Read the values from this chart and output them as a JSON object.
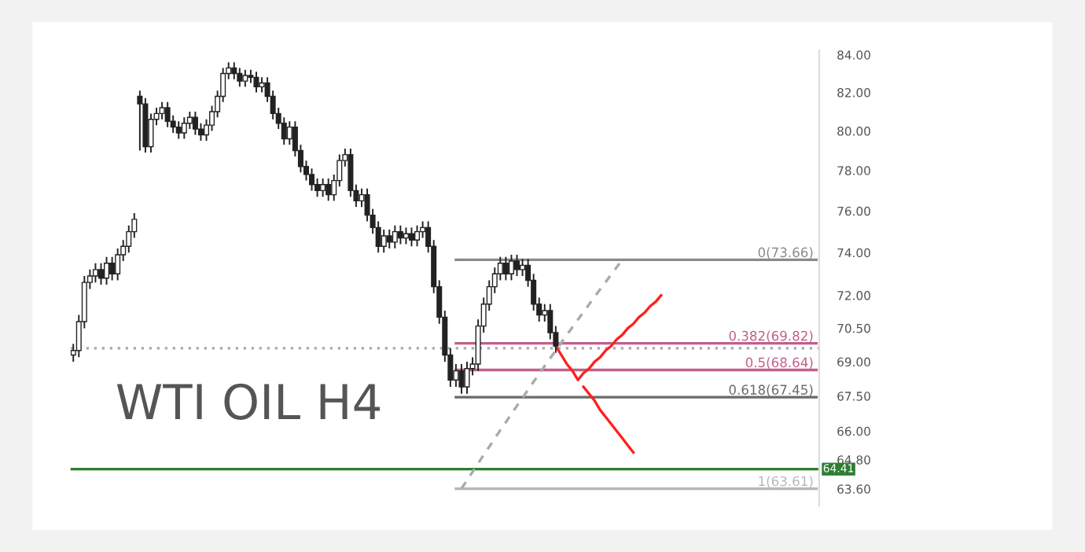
{
  "chart_data": {
    "type": "candlestick",
    "categories": [
      null,
      null,
      null,
      null,
      null,
      null,
      null,
      null,
      null,
      null,
      null,
      null,
      null,
      null,
      null,
      null,
      null,
      null,
      null,
      null,
      null,
      null,
      null,
      null,
      null,
      null,
      null,
      null,
      null,
      null,
      null,
      null,
      null,
      null,
      null,
      null,
      null,
      null,
      null,
      null,
      null,
      null,
      null,
      null,
      null,
      null,
      null,
      null,
      null,
      null,
      null,
      null,
      null,
      null,
      null,
      null,
      null,
      null,
      null,
      null,
      null,
      null,
      null,
      null,
      null,
      null,
      null,
      null,
      null,
      null,
      null,
      null,
      null,
      null,
      null,
      null,
      null,
      null,
      null,
      null,
      null,
      null,
      null,
      null,
      null,
      null,
      null,
      null,
      null,
      null,
      null,
      null,
      null,
      null,
      null,
      null,
      null,
      null,
      null,
      null,
      null,
      null,
      null,
      null,
      null,
      null,
      null,
      null,
      null,
      null,
      null,
      null,
      null,
      null,
      null,
      null,
      null,
      null,
      null,
      null,
      null,
      null,
      null,
      null,
      null,
      null,
      null,
      null,
      null,
      null,
      null,
      null,
      null,
      null,
      null
    ],
    "ohlc": [
      [
        69.3,
        69.8,
        69.0,
        69.5
      ],
      [
        69.5,
        71.1,
        69.2,
        70.8
      ],
      [
        70.8,
        72.9,
        70.5,
        72.6
      ],
      [
        72.6,
        73.2,
        72.3,
        72.9
      ],
      [
        72.9,
        73.5,
        72.6,
        73.2
      ],
      [
        73.2,
        73.5,
        72.5,
        72.8
      ],
      [
        72.8,
        73.8,
        72.5,
        73.5
      ],
      [
        73.5,
        73.8,
        72.7,
        73.0
      ],
      [
        73.0,
        74.2,
        72.7,
        73.9
      ],
      [
        73.9,
        74.6,
        73.6,
        74.3
      ],
      [
        74.3,
        75.3,
        74.0,
        75.0
      ],
      [
        75.0,
        75.9,
        74.7,
        75.6
      ],
      [
        81.8,
        82.1,
        79.0,
        81.4
      ],
      [
        81.4,
        81.7,
        78.9,
        79.2
      ],
      [
        79.2,
        80.9,
        78.9,
        80.6
      ],
      [
        80.6,
        81.2,
        80.3,
        80.9
      ],
      [
        80.9,
        81.5,
        80.6,
        81.2
      ],
      [
        81.2,
        81.5,
        80.2,
        80.5
      ],
      [
        80.5,
        80.8,
        79.9,
        80.2
      ],
      [
        80.2,
        80.5,
        79.6,
        79.9
      ],
      [
        79.9,
        80.7,
        79.6,
        80.4
      ],
      [
        80.4,
        81.0,
        80.1,
        80.7
      ],
      [
        80.7,
        81.0,
        79.8,
        80.1
      ],
      [
        80.1,
        80.4,
        79.5,
        79.8
      ],
      [
        79.8,
        80.6,
        79.5,
        80.3
      ],
      [
        80.3,
        81.3,
        80.0,
        81.0
      ],
      [
        81.0,
        82.1,
        80.7,
        81.8
      ],
      [
        81.8,
        83.3,
        81.5,
        83.0
      ],
      [
        83.0,
        83.6,
        82.7,
        83.3
      ],
      [
        83.3,
        83.6,
        82.7,
        83.0
      ],
      [
        83.0,
        83.3,
        82.3,
        82.6
      ],
      [
        82.6,
        83.2,
        82.3,
        82.9
      ],
      [
        82.9,
        83.2,
        82.5,
        82.8
      ],
      [
        82.8,
        83.1,
        82.0,
        82.3
      ],
      [
        82.3,
        82.8,
        82.0,
        82.5
      ],
      [
        82.5,
        82.8,
        81.5,
        81.8
      ],
      [
        81.8,
        82.1,
        80.6,
        80.9
      ],
      [
        80.9,
        81.2,
        80.1,
        80.4
      ],
      [
        80.4,
        80.7,
        79.3,
        79.6
      ],
      [
        79.6,
        80.5,
        79.3,
        80.2
      ],
      [
        80.2,
        80.5,
        78.7,
        79.0
      ],
      [
        79.0,
        79.3,
        77.9,
        78.2
      ],
      [
        78.2,
        78.5,
        77.5,
        77.8
      ],
      [
        77.8,
        78.1,
        77.0,
        77.3
      ],
      [
        77.3,
        77.6,
        76.7,
        77.0
      ],
      [
        77.0,
        77.6,
        76.7,
        77.3
      ],
      [
        77.3,
        77.6,
        76.5,
        76.8
      ],
      [
        76.8,
        77.8,
        76.5,
        77.5
      ],
      [
        77.5,
        78.8,
        77.2,
        78.5
      ],
      [
        78.5,
        79.1,
        78.2,
        78.8
      ],
      [
        78.8,
        79.1,
        76.7,
        77.0
      ],
      [
        77.0,
        77.3,
        76.2,
        76.5
      ],
      [
        76.5,
        77.1,
        76.2,
        76.8
      ],
      [
        76.8,
        77.1,
        75.5,
        75.8
      ],
      [
        75.8,
        76.1,
        74.9,
        75.2
      ],
      [
        75.2,
        75.5,
        74.0,
        74.3
      ],
      [
        74.3,
        75.1,
        74.0,
        74.8
      ],
      [
        74.8,
        75.1,
        74.2,
        74.5
      ],
      [
        74.5,
        75.3,
        74.2,
        75.0
      ],
      [
        75.0,
        75.3,
        74.4,
        74.7
      ],
      [
        74.7,
        75.2,
        74.4,
        74.9
      ],
      [
        74.9,
        75.2,
        74.3,
        74.6
      ],
      [
        74.6,
        75.3,
        74.3,
        75.0
      ],
      [
        75.0,
        75.5,
        74.7,
        75.2
      ],
      [
        75.2,
        75.5,
        74.0,
        74.3
      ],
      [
        74.3,
        74.6,
        72.1,
        72.4
      ],
      [
        72.4,
        72.7,
        70.7,
        71.0
      ],
      [
        71.0,
        71.3,
        69.0,
        69.3
      ],
      [
        69.3,
        69.6,
        67.9,
        68.2
      ],
      [
        68.2,
        68.9,
        67.9,
        68.6
      ],
      [
        68.6,
        68.9,
        67.6,
        67.9
      ],
      [
        67.9,
        69.0,
        67.6,
        68.7
      ],
      [
        68.7,
        69.2,
        68.4,
        68.9
      ],
      [
        68.9,
        70.9,
        68.6,
        70.6
      ],
      [
        70.6,
        71.9,
        70.3,
        71.6
      ],
      [
        71.6,
        72.7,
        71.3,
        72.4
      ],
      [
        72.4,
        73.3,
        72.1,
        73.0
      ],
      [
        73.0,
        73.8,
        72.7,
        73.5
      ],
      [
        73.5,
        73.8,
        72.7,
        73.0
      ],
      [
        73.0,
        73.9,
        72.7,
        73.6
      ],
      [
        73.6,
        73.9,
        72.9,
        73.2
      ],
      [
        73.2,
        73.7,
        72.9,
        73.4
      ],
      [
        73.4,
        73.7,
        72.4,
        72.7
      ],
      [
        72.7,
        73.0,
        71.3,
        71.6
      ],
      [
        71.6,
        71.9,
        70.8,
        71.1
      ],
      [
        71.1,
        71.6,
        70.8,
        71.3
      ],
      [
        71.3,
        71.6,
        70.0,
        70.3
      ],
      [
        70.3,
        70.6,
        69.4,
        69.7
      ],
      null,
      null,
      null,
      null,
      null,
      null,
      null,
      null,
      null,
      null,
      null,
      null,
      null,
      null,
      null,
      null,
      null,
      null,
      null,
      null,
      null,
      null,
      null,
      null,
      null,
      null,
      null,
      null,
      null,
      null,
      null,
      null,
      null,
      null,
      null,
      null,
      null,
      null,
      null,
      null,
      null,
      null,
      null,
      null,
      null,
      null,
      null
    ],
    "series": [
      {
        "type": "line",
        "name": "0(73.66)",
        "color": "#8a8a8a",
        "values": [
          null,
          null,
          null,
          null,
          null,
          null,
          null,
          null,
          null,
          null,
          null,
          null,
          null,
          null,
          null,
          null,
          null,
          null,
          null,
          null,
          null,
          null,
          null,
          null,
          null,
          null,
          null,
          null,
          null,
          null,
          null,
          null,
          null,
          null,
          null,
          null,
          null,
          null,
          null,
          null,
          null,
          null,
          null,
          null,
          null,
          null,
          null,
          null,
          null,
          null,
          null,
          null,
          null,
          null,
          null,
          null,
          null,
          null,
          null,
          null,
          null,
          null,
          null,
          null,
          null,
          null,
          null,
          null,
          null,
          73.66,
          73.66,
          73.66,
          73.66,
          73.66,
          73.66,
          73.66,
          73.66,
          73.66,
          73.66,
          73.66,
          73.66,
          73.66,
          73.66,
          73.66,
          73.66,
          73.66,
          73.66,
          73.66,
          73.66,
          73.66,
          73.66,
          73.66,
          73.66,
          73.66,
          73.66,
          73.66,
          73.66,
          73.66,
          73.66,
          73.66,
          73.66,
          73.66,
          73.66,
          73.66,
          73.66,
          73.66,
          73.66,
          73.66,
          73.66,
          73.66,
          73.66,
          73.66,
          73.66,
          73.66,
          73.66,
          73.66,
          73.66,
          73.66,
          73.66,
          73.66,
          73.66,
          73.66,
          73.66,
          73.66,
          73.66,
          73.66,
          73.66,
          73.66,
          73.66,
          73.66,
          73.66,
          73.66,
          73.66,
          73.66,
          73.66
        ]
      },
      {
        "type": "line",
        "name": "0.382(69.82)",
        "color": "#c0608a",
        "values": [
          null,
          null,
          null,
          null,
          null,
          null,
          null,
          null,
          null,
          null,
          null,
          null,
          null,
          null,
          null,
          null,
          null,
          null,
          null,
          null,
          null,
          null,
          null,
          null,
          null,
          null,
          null,
          null,
          null,
          null,
          null,
          null,
          null,
          null,
          null,
          null,
          null,
          null,
          null,
          null,
          null,
          null,
          null,
          null,
          null,
          null,
          null,
          null,
          null,
          null,
          null,
          null,
          null,
          null,
          null,
          null,
          null,
          null,
          null,
          null,
          null,
          null,
          null,
          null,
          null,
          null,
          null,
          null,
          null,
          69.82,
          69.82,
          69.82,
          69.82,
          69.82,
          69.82,
          69.82,
          69.82,
          69.82,
          69.82,
          69.82,
          69.82,
          69.82,
          69.82,
          69.82,
          69.82,
          69.82,
          69.82,
          69.82,
          69.82,
          69.82,
          69.82,
          69.82,
          69.82,
          69.82,
          69.82,
          69.82,
          69.82,
          69.82,
          69.82,
          69.82,
          69.82,
          69.82,
          69.82,
          69.82,
          69.82,
          69.82,
          69.82,
          69.82,
          69.82,
          69.82,
          69.82,
          69.82,
          69.82,
          69.82,
          69.82,
          69.82,
          69.82,
          69.82,
          69.82,
          69.82,
          69.82,
          69.82,
          69.82,
          69.82,
          69.82,
          69.82,
          69.82,
          69.82,
          69.82,
          69.82,
          69.82,
          69.82,
          69.82,
          69.82,
          69.82
        ]
      },
      {
        "type": "line",
        "name": "0.5(68.64)",
        "color": "#c0608a",
        "values": [
          null,
          null,
          null,
          null,
          null,
          null,
          null,
          null,
          null,
          null,
          null,
          null,
          null,
          null,
          null,
          null,
          null,
          null,
          null,
          null,
          null,
          null,
          null,
          null,
          null,
          null,
          null,
          null,
          null,
          null,
          null,
          null,
          null,
          null,
          null,
          null,
          null,
          null,
          null,
          null,
          null,
          null,
          null,
          null,
          null,
          null,
          null,
          null,
          null,
          null,
          null,
          null,
          null,
          null,
          null,
          null,
          null,
          null,
          null,
          null,
          null,
          null,
          null,
          null,
          null,
          null,
          null,
          null,
          null,
          68.64,
          68.64,
          68.64,
          68.64,
          68.64,
          68.64,
          68.64,
          68.64,
          68.64,
          68.64,
          68.64,
          68.64,
          68.64,
          68.64,
          68.64,
          68.64,
          68.64,
          68.64,
          68.64,
          68.64,
          68.64,
          68.64,
          68.64,
          68.64,
          68.64,
          68.64,
          68.64,
          68.64,
          68.64,
          68.64,
          68.64,
          68.64,
          68.64,
          68.64,
          68.64,
          68.64,
          68.64,
          68.64,
          68.64,
          68.64,
          68.64,
          68.64,
          68.64,
          68.64,
          68.64,
          68.64,
          68.64,
          68.64,
          68.64,
          68.64,
          68.64,
          68.64,
          68.64,
          68.64,
          68.64,
          68.64,
          68.64,
          68.64,
          68.64,
          68.64,
          68.64,
          68.64,
          68.64,
          68.64,
          68.64,
          68.64
        ]
      },
      {
        "type": "line",
        "name": "0.618(67.45)",
        "color": "#6a6a6a",
        "values": [
          null,
          null,
          null,
          null,
          null,
          null,
          null,
          null,
          null,
          null,
          null,
          null,
          null,
          null,
          null,
          null,
          null,
          null,
          null,
          null,
          null,
          null,
          null,
          null,
          null,
          null,
          null,
          null,
          null,
          null,
          null,
          null,
          null,
          null,
          null,
          null,
          null,
          null,
          null,
          null,
          null,
          null,
          null,
          null,
          null,
          null,
          null,
          null,
          null,
          null,
          null,
          null,
          null,
          null,
          null,
          null,
          null,
          null,
          null,
          null,
          null,
          null,
          null,
          null,
          null,
          null,
          null,
          null,
          null,
          67.45,
          67.45,
          67.45,
          67.45,
          67.45,
          67.45,
          67.45,
          67.45,
          67.45,
          67.45,
          67.45,
          67.45,
          67.45,
          67.45,
          67.45,
          67.45,
          67.45,
          67.45,
          67.45,
          67.45,
          67.45,
          67.45,
          67.45,
          67.45,
          67.45,
          67.45,
          67.45,
          67.45,
          67.45,
          67.45,
          67.45,
          67.45,
          67.45,
          67.45,
          67.45,
          67.45,
          67.45,
          67.45,
          67.45,
          67.45,
          67.45,
          67.45,
          67.45,
          67.45,
          67.45,
          67.45,
          67.45,
          67.45,
          67.45,
          67.45,
          67.45,
          67.45,
          67.45,
          67.45,
          67.45,
          67.45,
          67.45,
          67.45,
          67.45,
          67.45,
          67.45,
          67.45,
          67.45,
          67.45,
          67.45,
          67.45
        ]
      },
      {
        "type": "line",
        "name": "1(63.61)",
        "color": "#b8b8b8",
        "values": [
          null,
          null,
          null,
          null,
          null,
          null,
          null,
          null,
          null,
          null,
          null,
          null,
          null,
          null,
          null,
          null,
          null,
          null,
          null,
          null,
          null,
          null,
          null,
          null,
          null,
          null,
          null,
          null,
          null,
          null,
          null,
          null,
          null,
          null,
          null,
          null,
          null,
          null,
          null,
          null,
          null,
          null,
          null,
          null,
          null,
          null,
          null,
          null,
          null,
          null,
          null,
          null,
          null,
          null,
          null,
          null,
          null,
          null,
          null,
          null,
          null,
          null,
          null,
          null,
          null,
          null,
          null,
          null,
          null,
          63.61,
          63.61,
          63.61,
          63.61,
          63.61,
          63.61,
          63.61,
          63.61,
          63.61,
          63.61,
          63.61,
          63.61,
          63.61,
          63.61,
          63.61,
          63.61,
          63.61,
          63.61,
          63.61,
          63.61,
          63.61,
          63.61,
          63.61,
          63.61,
          63.61,
          63.61,
          63.61,
          63.61,
          63.61,
          63.61,
          63.61,
          63.61,
          63.61,
          63.61,
          63.61,
          63.61,
          63.61,
          63.61,
          63.61,
          63.61,
          63.61,
          63.61,
          63.61,
          63.61,
          63.61,
          63.61,
          63.61,
          63.61,
          63.61,
          63.61,
          63.61,
          63.61,
          63.61,
          63.61,
          63.61,
          63.61,
          63.61,
          63.61,
          63.61,
          63.61,
          63.61,
          63.61,
          63.61,
          63.61,
          63.61,
          63.61
        ]
      },
      {
        "type": "line",
        "color": "#aaaaaa",
        "line_style": "dashed",
        "values": [
          null,
          null,
          null,
          null,
          null,
          null,
          null,
          null,
          null,
          null,
          null,
          null,
          null,
          null,
          null,
          null,
          null,
          null,
          null,
          null,
          null,
          null,
          null,
          null,
          null,
          null,
          null,
          null,
          null,
          null,
          null,
          null,
          null,
          null,
          null,
          null,
          null,
          null,
          null,
          null,
          null,
          null,
          null,
          null,
          null,
          null,
          null,
          null,
          null,
          null,
          null,
          null,
          null,
          null,
          null,
          null,
          null,
          null,
          null,
          null,
          null,
          null,
          null,
          null,
          null,
          null,
          null,
          null,
          null,
          null,
          63.61,
          63.96,
          64.3,
          64.65,
          65.0,
          65.34,
          65.69,
          66.04,
          66.38,
          66.73,
          67.08,
          67.42,
          67.77,
          68.12,
          68.46,
          68.81,
          69.16,
          69.5,
          69.85,
          70.2,
          70.54,
          70.89,
          71.24,
          71.58,
          71.93,
          72.28,
          72.62,
          72.97,
          73.31,
          73.66,
          null,
          null,
          null,
          null,
          null,
          null,
          null,
          null,
          null,
          null,
          null,
          null,
          null,
          null,
          null,
          null,
          null,
          null,
          null,
          null,
          null,
          null,
          null,
          null,
          null,
          null,
          null,
          null,
          null,
          null,
          null,
          null,
          null,
          null,
          null
        ]
      },
      {
        "type": "line",
        "color": "#ff2020",
        "values": [
          null,
          null,
          null,
          null,
          null,
          null,
          null,
          null,
          null,
          null,
          null,
          null,
          null,
          null,
          null,
          null,
          null,
          null,
          null,
          null,
          null,
          null,
          null,
          null,
          null,
          null,
          null,
          null,
          null,
          null,
          null,
          null,
          null,
          null,
          null,
          null,
          null,
          null,
          null,
          null,
          null,
          null,
          null,
          null,
          null,
          null,
          null,
          null,
          null,
          null,
          null,
          null,
          null,
          null,
          null,
          null,
          null,
          null,
          null,
          null,
          null,
          null,
          null,
          null,
          null,
          null,
          null,
          null,
          null,
          null,
          null,
          null,
          null,
          null,
          null,
          null,
          null,
          null,
          null,
          null,
          null,
          null,
          null,
          null,
          null,
          null,
          null,
          69.7,
          69.3,
          68.9,
          68.6,
          68.2,
          68.5,
          68.7,
          69.0,
          69.2,
          69.5,
          69.7,
          70.0,
          70.2,
          70.5,
          70.7,
          71.0,
          71.2,
          71.5,
          71.7,
          72.0,
          null,
          null,
          null,
          null,
          null,
          null,
          null,
          null,
          null,
          null,
          null,
          null,
          null,
          null,
          null,
          null,
          null,
          null,
          null,
          null,
          null,
          null,
          null,
          null,
          null,
          null,
          null,
          null
        ]
      },
      {
        "type": "line",
        "color": "#ff2020",
        "values": [
          null,
          null,
          null,
          null,
          null,
          null,
          null,
          null,
          null,
          null,
          null,
          null,
          null,
          null,
          null,
          null,
          null,
          null,
          null,
          null,
          null,
          null,
          null,
          null,
          null,
          null,
          null,
          null,
          null,
          null,
          null,
          null,
          null,
          null,
          null,
          null,
          null,
          null,
          null,
          null,
          null,
          null,
          null,
          null,
          null,
          null,
          null,
          null,
          null,
          null,
          null,
          null,
          null,
          null,
          null,
          null,
          null,
          null,
          null,
          null,
          null,
          null,
          null,
          null,
          null,
          null,
          null,
          null,
          null,
          null,
          null,
          null,
          null,
          null,
          null,
          null,
          null,
          null,
          null,
          null,
          null,
          null,
          null,
          null,
          null,
          null,
          null,
          null,
          null,
          null,
          null,
          null,
          67.9,
          67.6,
          67.3,
          66.9,
          66.6,
          66.3,
          66.0,
          65.7,
          65.4,
          65.1,
          null,
          null,
          null,
          null,
          null,
          null,
          null,
          null,
          null,
          null,
          null,
          null,
          null,
          null,
          null,
          null,
          null,
          null,
          null,
          null,
          null,
          null,
          null,
          null,
          null,
          null,
          null,
          null,
          null,
          null,
          null,
          null,
          null
        ]
      }
    ],
    "annotations": [
      "WTI OIL H4"
    ],
    "ref_lines": [
      {
        "axis": "y",
        "value": 69.6,
        "color": "#aaaaaa",
        "line_style": "dotted"
      },
      {
        "axis": "y",
        "value": 64.41,
        "label": "64.41",
        "color": "#2e7d32",
        "line_style": "solid"
      }
    ],
    "log": "y",
    "ylim": [
      62.9,
      84.25
    ],
    "yticks": [
      {
        "value": 84,
        "label": "84.00"
      },
      {
        "value": 82,
        "label": "82.00"
      },
      {
        "value": 80,
        "label": "80.00"
      },
      {
        "value": 78,
        "label": "78.00"
      },
      {
        "value": 76,
        "label": "76.00"
      },
      {
        "value": 74,
        "label": "74.00"
      },
      {
        "value": 72,
        "label": "72.00"
      },
      {
        "value": 70.5,
        "label": "70.50"
      },
      {
        "value": 69,
        "label": "69.00"
      },
      {
        "value": 67.5,
        "label": "67.50"
      },
      {
        "value": 66,
        "label": "66.00"
      },
      {
        "value": 64.8,
        "label": "64.80"
      },
      {
        "value": 63.6,
        "label": "63.60"
      }
    ],
    "tick_labels": "y",
    "grid": false,
    "legend": false,
    "marker": "none"
  }
}
